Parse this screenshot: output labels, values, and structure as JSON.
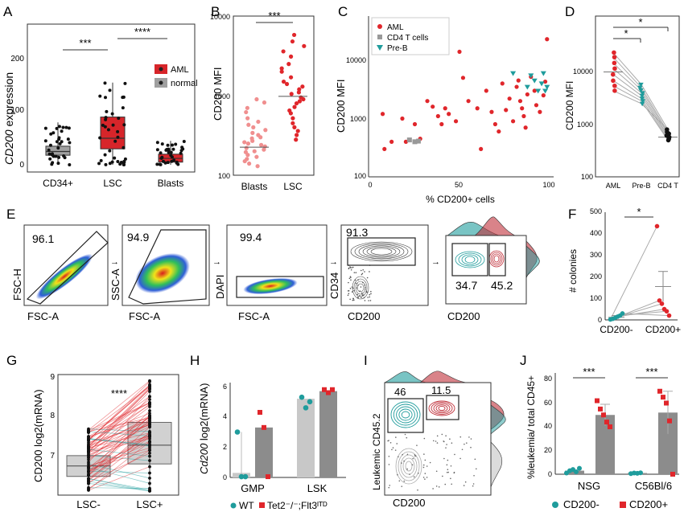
{
  "colors": {
    "red": "#e0262b",
    "teal": "#1f9c9c",
    "gray": "#999999",
    "dark": "#222222",
    "boxRed": "#d7252a",
    "boxGray": "#a0a0a0",
    "lightRed": "#f08f8f"
  },
  "panels": {
    "A": "A",
    "B": "B",
    "C": "C",
    "D": "D",
    "E": "E",
    "F": "F",
    "G": "G",
    "H": "H",
    "I": "I",
    "J": "J"
  },
  "A": {
    "ylabel_italic": "CD200",
    "ylabel_rest": " expression",
    "yticks": [
      "0",
      "100",
      "200"
    ],
    "categories": [
      "CD34+",
      "LSC",
      "Blasts"
    ],
    "legend": [
      "AML",
      "normal"
    ],
    "sig": [
      "***",
      "****"
    ],
    "chart_data": {
      "type": "box",
      "categories": [
        "CD34+",
        "LSC",
        "Blasts"
      ],
      "boxes": [
        {
          "name": "CD34+",
          "q1": 18,
          "median": 25,
          "q3": 35,
          "whisker_low": 0,
          "whisker_high": 80,
          "color": "normal"
        },
        {
          "name": "LSC",
          "q1": 30,
          "median": 50,
          "q3": 90,
          "whisker_low": 0,
          "whisker_high": 155,
          "color": "AML"
        },
        {
          "name": "Blasts",
          "q1": 5,
          "median": 12,
          "q3": 20,
          "whisker_low": 0,
          "whisker_high": 45,
          "color": "AML"
        }
      ],
      "ylim": [
        -20,
        220
      ]
    }
  },
  "B": {
    "ylabel": "CD200 MFI",
    "yticks": [
      "100",
      "1000",
      "10000"
    ],
    "categories": [
      "Blasts",
      "LSC"
    ],
    "sig": "***",
    "chart_data": {
      "type": "scatter",
      "scale": "log",
      "ylim": [
        100,
        10000
      ],
      "Blasts": [
        900,
        820,
        700,
        620,
        520,
        470,
        430,
        400,
        370,
        340,
        320,
        300,
        290,
        270,
        260,
        250,
        240,
        230,
        220,
        210,
        200,
        195,
        180,
        170,
        160,
        150,
        140,
        130
      ],
      "LSC": [
        5800,
        4800,
        4200,
        3600,
        3100,
        2500,
        2200,
        2000,
        1700,
        1500,
        1400,
        1300,
        1200,
        1100,
        1050,
        950,
        900,
        850,
        800,
        720,
        650,
        600,
        520,
        450,
        400,
        360,
        320,
        280
      ],
      "medians": {
        "Blasts": 225,
        "LSC": 980
      }
    }
  },
  "C": {
    "ylabel": "CD200 MFI",
    "xlabel": "% CD200+ cells",
    "yticks": [
      "100",
      "1000",
      "10000"
    ],
    "xticks": [
      "0",
      "50",
      "100"
    ],
    "legend": [
      "AML",
      "CD4 T cells",
      "Pre-B"
    ],
    "chart_data": {
      "type": "scatter",
      "scale_y": "log",
      "xlim": [
        0,
        100
      ],
      "ylim": [
        100,
        30000
      ],
      "AML": [
        [
          7,
          1200
        ],
        [
          8,
          300
        ],
        [
          12,
          400
        ],
        [
          18,
          1000
        ],
        [
          20,
          400
        ],
        [
          25,
          800
        ],
        [
          28,
          450
        ],
        [
          32,
          2000
        ],
        [
          35,
          1600
        ],
        [
          38,
          1100
        ],
        [
          40,
          800
        ],
        [
          42,
          1500
        ],
        [
          44,
          1200
        ],
        [
          48,
          900
        ],
        [
          50,
          14000
        ],
        [
          52,
          5000
        ],
        [
          55,
          2000
        ],
        [
          60,
          1500
        ],
        [
          62,
          300
        ],
        [
          65,
          3000
        ],
        [
          68,
          1300
        ],
        [
          70,
          800
        ],
        [
          72,
          600
        ],
        [
          74,
          4000
        ],
        [
          76,
          1400
        ],
        [
          78,
          2200
        ],
        [
          80,
          900
        ],
        [
          82,
          3500
        ],
        [
          83,
          4500
        ],
        [
          84,
          2000
        ],
        [
          85,
          1500
        ],
        [
          86,
          1100
        ],
        [
          87,
          700
        ],
        [
          88,
          2600
        ],
        [
          90,
          5200
        ],
        [
          92,
          3000
        ],
        [
          93,
          1700
        ],
        [
          95,
          1300
        ],
        [
          97,
          2500
        ],
        [
          98,
          4300
        ],
        [
          99,
          23000
        ]
      ],
      "CD4 T cells": [
        [
          22,
          430
        ],
        [
          25,
          400
        ],
        [
          27,
          410
        ]
      ],
      "Pre-B": [
        [
          80,
          6000
        ],
        [
          88,
          3500
        ],
        [
          90,
          5500
        ],
        [
          92,
          4500
        ],
        [
          94,
          3000
        ],
        [
          96,
          4000
        ],
        [
          97,
          6000
        ],
        [
          98,
          3000
        ],
        [
          99,
          3500
        ]
      ]
    }
  },
  "D": {
    "ylabel": "CD200 MFI",
    "yticks": [
      "100",
      "1000",
      "10000"
    ],
    "categories": [
      "AML",
      "Pre-B",
      "CD4 T"
    ],
    "sig": [
      "*",
      "*"
    ],
    "chart_data": {
      "type": "paired-scatter",
      "scale": "log",
      "ylim": [
        100,
        30000
      ],
      "AML": [
        22000,
        18000,
        14000,
        11000,
        8500,
        6500,
        5200,
        4200
      ],
      "Pre-B": [
        5500,
        4800,
        4300,
        3800,
        3400,
        3000,
        2700,
        2400
      ],
      "CD4 T": [
        780,
        700,
        650,
        600,
        560,
        520,
        490
      ],
      "medians": {
        "AML": 9500,
        "CD4 T": 560
      }
    }
  },
  "E": {
    "gates": [
      "96.1",
      "94.9",
      "99.4",
      "91.3",
      "34.7",
      "45.2"
    ],
    "xlabels": [
      "FSC-A",
      "FSC-A",
      "FSC-A",
      "CD200",
      "CD200"
    ],
    "ylabels": [
      "FSC-H",
      "SSC-A",
      "DAPI",
      "CD34",
      ""
    ]
  },
  "F": {
    "ylabel": "# colonies",
    "yticks": [
      "0",
      "100",
      "200",
      "300",
      "400",
      "500"
    ],
    "categories": [
      "CD200-",
      "CD200+"
    ],
    "sig": "*",
    "chart_data": {
      "type": "paired-scatter",
      "ylim": [
        0,
        500
      ],
      "CD200-": [
        2,
        5,
        10,
        15,
        20,
        30
      ],
      "CD200+": [
        435,
        90,
        75,
        50,
        40,
        20
      ],
      "means": {
        "CD200-": 12,
        "CD200+": 155
      },
      "sem": {
        "CD200-": 8,
        "CD200+": 70
      }
    }
  },
  "G": {
    "ylabel": "CD200 log2(mRNA)",
    "yticks": [
      "7",
      "8",
      "9"
    ],
    "categories": [
      "LSC-",
      "LSC+"
    ],
    "sig": "****",
    "chart_data": {
      "type": "paired-box",
      "ylim": [
        6.2,
        9.1
      ],
      "boxes": [
        {
          "name": "LSC-",
          "q1": 6.65,
          "median": 6.9,
          "q3": 7.15,
          "whisker_low": 6.3,
          "whisker_high": 7.8
        },
        {
          "name": "LSC+",
          "q1": 6.95,
          "median": 7.4,
          "q3": 7.95,
          "whisker_low": 6.3,
          "whisker_high": 8.9
        }
      ]
    }
  },
  "H": {
    "ylabel_italic": "Cd200",
    "ylabel_rest": " log2(mRNA)",
    "yticks": [
      "0",
      "2",
      "4",
      "6"
    ],
    "categories": [
      "GMP",
      "LSK"
    ],
    "legend": [
      "WT",
      "Tet2⁻/⁻;Flt3ᴵᵀᴰ"
    ],
    "chart_data": {
      "type": "bar",
      "ylim": [
        0,
        6.2
      ],
      "categories": [
        "GMP",
        "LSK"
      ],
      "series": [
        {
          "name": "WT",
          "values": [
            0.3,
            5.2
          ],
          "points": [
            [
              3.0,
              0.05,
              0.05
            ],
            [
              5.3,
              4.6,
              5.0
            ]
          ]
        },
        {
          "name": "Tet2⁻/⁻;Flt3ᴵᵀᴰ",
          "values": [
            3.3,
            5.7
          ],
          "points": [
            [
              4.3,
              3.3,
              0.05
            ],
            [
              5.8,
              5.6,
              5.8
            ]
          ]
        }
      ]
    }
  },
  "I": {
    "ylabel": "Leukemic CD45.2",
    "xlabel": "CD200",
    "gates": [
      "46",
      "11.5"
    ]
  },
  "J": {
    "ylabel": "%leukemia/ total CD45+",
    "yticks": [
      "0",
      "20",
      "40",
      "60",
      "80"
    ],
    "categories": [
      "NSG",
      "C56Bl/6"
    ],
    "sig": [
      "***",
      "***"
    ],
    "legend": [
      "CD200-",
      "CD200+"
    ],
    "chart_data": {
      "type": "bar",
      "ylim": [
        0,
        85
      ],
      "categories": [
        "NSG",
        "C56Bl/6"
      ],
      "series": [
        {
          "name": "CD200-",
          "values": [
            3,
            1
          ],
          "points": [
            [
              1,
              3,
              4,
              2,
              5
            ],
            [
              0.5,
              1,
              0.8,
              1.2
            ]
          ]
        },
        {
          "name": "CD200+",
          "values": [
            50,
            52
          ],
          "points": [
            [
              62,
              55,
              50,
              44,
              40
            ],
            [
              70,
              65,
              60,
              45,
              0
            ]
          ]
        }
      ]
    }
  }
}
